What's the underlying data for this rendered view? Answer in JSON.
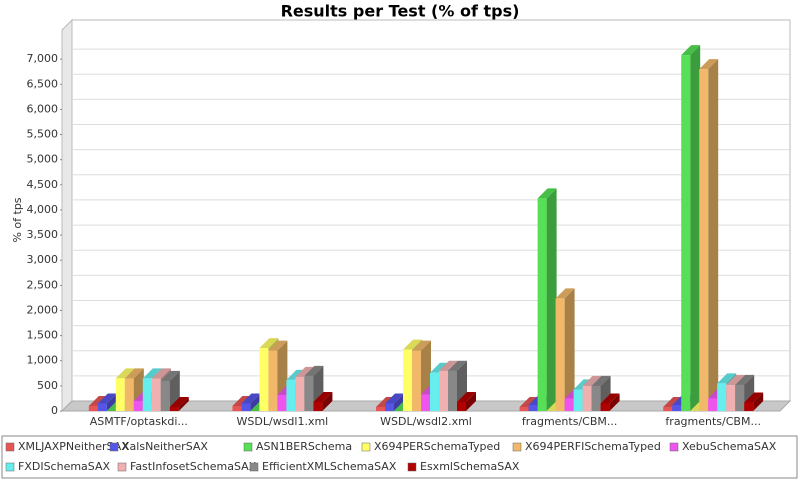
{
  "chart_data": {
    "type": "bar3d",
    "title": "Results per Test (% of tps)",
    "y_label": "% of tps",
    "categories": [
      "ASMTF/optaskdi...",
      "WSDL/wsdl1.xml",
      "WSDL/wsdl2.xml",
      "fragments/CBM...",
      "fragments/CBM..."
    ],
    "series": [
      {
        "name": "XMLJAXPNeitherSAX",
        "color": "#e85555",
        "values": [
          100,
          100,
          80,
          80,
          80
        ]
      },
      {
        "name": "XalsNeitherSAX",
        "color": "#5555e8",
        "values": [
          150,
          150,
          150,
          120,
          120
        ]
      },
      {
        "name": "ASN1BERSchema",
        "color": "#55e055",
        "values": [
          0,
          0,
          0,
          4230,
          7080
        ]
      },
      {
        "name": "X694PERSchemaTyped",
        "color": "#ffff66",
        "values": [
          650,
          1250,
          1220,
          0,
          0
        ]
      },
      {
        "name": "X694PERFISchemaTyped",
        "color": "#f0b868",
        "values": [
          650,
          1200,
          1200,
          2240,
          6800
        ]
      },
      {
        "name": "XebuSchemaSAX",
        "color": "#ee55ee",
        "values": [
          200,
          320,
          330,
          250,
          250
        ]
      },
      {
        "name": "FXDISchemaSAX",
        "color": "#66eeee",
        "values": [
          650,
          620,
          760,
          430,
          550
        ]
      },
      {
        "name": "FastInfosetSchemaSAX",
        "color": "#f0b0b0",
        "values": [
          650,
          680,
          800,
          500,
          520
        ]
      },
      {
        "name": "EfficientXMLSchemaSAX",
        "color": "#888888",
        "values": [
          600,
          700,
          800,
          500,
          520
        ]
      },
      {
        "name": "EsxmlSchemaSAX",
        "color": "#b00000",
        "values": [
          80,
          180,
          180,
          150,
          170
        ]
      }
    ],
    "ylim": [
      0,
      7500
    ],
    "yticks": [
      0,
      500,
      {
        "value": 1000,
        "label": "1,000"
      },
      {
        "value": 1500,
        "label": "1,500"
      },
      {
        "value": 2000,
        "label": "2,000"
      },
      {
        "value": 2500,
        "label": "2,500"
      },
      {
        "value": 3000,
        "label": "3,000"
      },
      {
        "value": 3500,
        "label": "3,500"
      },
      {
        "value": 4000,
        "label": "4,000"
      },
      {
        "value": 4500,
        "label": "4,500"
      },
      {
        "value": 5000,
        "label": "5,000"
      },
      {
        "value": 5500,
        "label": "5,500"
      },
      {
        "value": 6000,
        "label": "6,000"
      },
      {
        "value": 6500,
        "label": "6,500"
      },
      {
        "value": 7000,
        "label": "7,000"
      }
    ],
    "grid": true
  }
}
